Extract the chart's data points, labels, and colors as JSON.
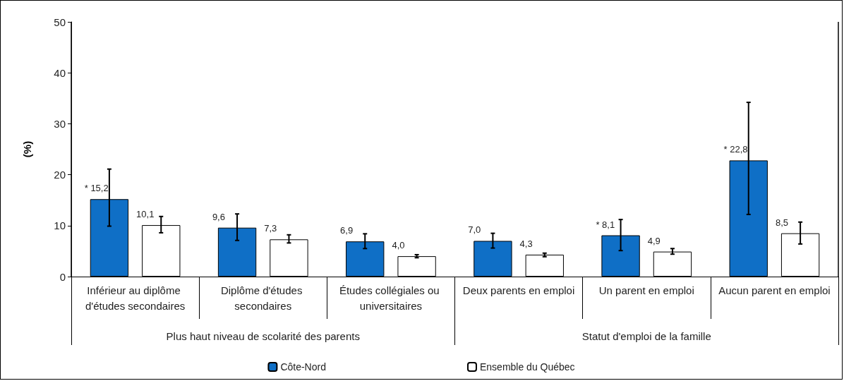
{
  "chart_data": {
    "type": "bar",
    "ylabel": "(%)",
    "categories": [
      "Inférieur au diplôme d'études secondaires",
      "Diplôme d'études secondaires",
      "Études collégiales ou universitaires",
      "Deux parents en emploi",
      "Un parent en emploi",
      "Aucun parent en emploi"
    ],
    "series": [
      {
        "name": "Côte-Nord",
        "color": "#0f6fc6",
        "values": [
          15.2,
          9.6,
          6.9,
          7.0,
          8.1,
          22.8
        ],
        "errors": [
          [
            9.9,
            21.1
          ],
          [
            7.1,
            12.3
          ],
          [
            5.5,
            8.4
          ],
          [
            5.6,
            8.5
          ],
          [
            5.1,
            11.2
          ],
          [
            12.2,
            34.2
          ]
        ],
        "value_labels": [
          "* 15,2",
          "9,6",
          "6,9",
          "7,0",
          "* 8,1",
          "* 22,8"
        ]
      },
      {
        "name": "Ensemble du Québec",
        "color": "#ffffff",
        "values": [
          10.1,
          7.3,
          4.0,
          4.3,
          4.9,
          8.5
        ],
        "errors": [
          [
            8.6,
            11.8
          ],
          [
            6.6,
            8.2
          ],
          [
            3.7,
            4.3
          ],
          [
            3.9,
            4.6
          ],
          [
            4.4,
            5.5
          ],
          [
            6.4,
            10.7
          ]
        ],
        "value_labels": [
          "10,1",
          "7,3",
          "4,0",
          "4,3",
          "4,9",
          "8,5"
        ]
      }
    ],
    "annotations": [
      "Plus haut niveau de scolarité des parents",
      "Statut d'emploi de la famille"
    ],
    "ylim": [
      0,
      50
    ],
    "yticks": [
      0,
      10,
      20,
      30,
      40,
      50
    ],
    "grid": false,
    "legend": "bottom"
  }
}
